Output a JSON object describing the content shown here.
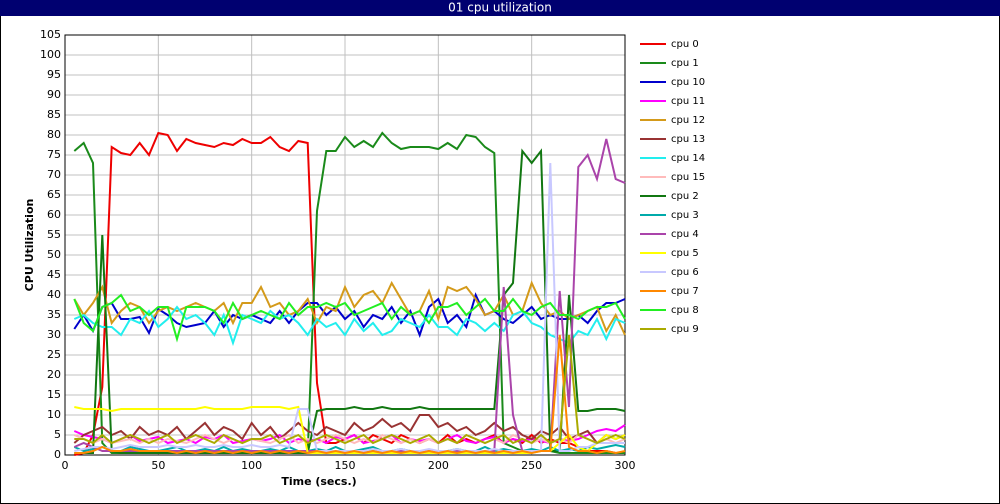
{
  "chart_data": {
    "type": "line",
    "title": "01 cpu utilization",
    "xlabel": "Time (secs.)",
    "ylabel": "CPU Utilization",
    "xlim": [
      0,
      300
    ],
    "xticks": [
      0,
      50,
      100,
      150,
      200,
      250,
      300
    ],
    "ylim": [
      0,
      105
    ],
    "yticks": [
      0,
      5,
      10,
      15,
      20,
      25,
      30,
      35,
      40,
      45,
      50,
      55,
      60,
      65,
      70,
      75,
      80,
      85,
      90,
      95,
      100,
      105
    ],
    "grid": true,
    "legend": "right",
    "x": [
      5,
      10,
      15,
      20,
      25,
      30,
      35,
      40,
      45,
      50,
      55,
      60,
      65,
      70,
      75,
      80,
      85,
      90,
      95,
      100,
      105,
      110,
      115,
      120,
      125,
      130,
      135,
      140,
      145,
      150,
      155,
      160,
      165,
      170,
      175,
      180,
      185,
      190,
      195,
      200,
      205,
      210,
      215,
      220,
      225,
      230,
      235,
      240,
      245,
      250,
      255,
      260,
      265,
      270,
      275,
      280,
      285,
      290,
      295,
      300
    ],
    "series": [
      {
        "name": "cpu 0",
        "color": "#ee0000",
        "values": [
          0,
          0.5,
          5,
          17,
          77,
          75.5,
          75,
          78,
          75,
          80.5,
          80,
          76,
          79,
          78,
          77.5,
          77,
          78,
          77.5,
          79,
          78,
          78,
          79.5,
          77,
          76,
          78.5,
          78,
          18,
          3,
          3,
          4,
          5,
          3,
          5,
          4,
          3,
          5,
          4,
          3,
          4,
          3,
          5,
          3,
          4,
          3,
          4,
          5,
          3,
          4,
          3,
          5,
          3,
          4,
          3,
          3,
          2,
          1,
          1,
          1,
          0.5,
          0.5
        ]
      },
      {
        "name": "cpu 1",
        "color": "#1a8a1a",
        "values": [
          76,
          78,
          73,
          3,
          0.5,
          0.5,
          0.5,
          0.5,
          0.5,
          0.5,
          0.5,
          0.5,
          0.5,
          0.5,
          0.5,
          0.5,
          0.5,
          0.5,
          0.5,
          0.5,
          0.5,
          0.5,
          0.5,
          0.5,
          0.5,
          0.5,
          61,
          76,
          76,
          79.5,
          77,
          78.5,
          77,
          80.5,
          78,
          76.5,
          77,
          77,
          77,
          76.5,
          78,
          76.5,
          80,
          79.5,
          77,
          75.5,
          3,
          2,
          1,
          1,
          1,
          1,
          0.5,
          0.5,
          0.5,
          0.5,
          0.5,
          0.5,
          0.5,
          0.5
        ]
      },
      {
        "name": "cpu 10",
        "color": "#0000cc",
        "values": [
          31.5,
          35,
          31,
          37,
          38,
          34,
          34,
          34.5,
          30.5,
          36.5,
          35,
          33,
          32,
          32.5,
          33,
          36,
          32,
          35,
          34,
          35,
          34,
          33,
          36,
          33,
          36,
          38,
          38,
          35,
          37,
          34,
          36,
          32,
          35,
          34,
          37,
          33,
          36,
          30,
          37,
          39,
          33,
          35,
          32,
          40,
          35,
          36,
          34,
          33,
          35,
          37,
          34,
          35,
          34,
          34,
          35,
          33,
          36,
          38,
          38,
          39
        ]
      },
      {
        "name": "cpu 11",
        "color": "#ff00ff",
        "values": [
          6,
          5,
          4.5,
          4,
          3,
          4,
          5,
          3.5,
          4,
          4.5,
          3,
          3.5,
          4,
          3,
          4.5,
          4,
          5,
          3,
          3.5,
          4,
          3.5,
          4,
          5,
          3,
          4,
          3.5,
          4,
          3,
          4.5,
          4,
          5,
          3,
          3.5,
          4,
          5,
          3,
          4,
          3.5,
          4,
          3,
          4,
          5,
          3.5,
          3,
          4,
          4.5,
          3,
          4,
          3.5,
          4,
          3.5,
          3,
          4,
          3.5,
          4,
          5,
          6,
          6.5,
          6,
          7.5
        ]
      },
      {
        "name": "cpu 12",
        "color": "#d49a1a",
        "values": [
          39,
          35,
          38,
          42,
          33,
          36,
          38,
          37,
          33,
          36,
          37,
          36,
          37,
          38,
          37,
          36,
          38,
          33,
          38,
          38,
          42,
          37,
          38,
          35,
          36,
          39,
          33,
          37,
          36,
          42,
          37,
          40,
          41,
          38,
          43,
          39,
          35,
          36,
          41,
          34,
          42,
          41,
          42,
          39,
          35,
          36,
          40,
          35,
          36,
          43,
          38,
          35,
          36,
          34,
          35,
          36,
          37,
          31,
          35,
          30
        ]
      },
      {
        "name": "cpu 13",
        "color": "#993333",
        "values": [
          3,
          5,
          6,
          7,
          5,
          6,
          4,
          7,
          5,
          6,
          5,
          7,
          4,
          6,
          8,
          5,
          7,
          6,
          4,
          8,
          5,
          7,
          4,
          6,
          8,
          6,
          5,
          7,
          6,
          5,
          8,
          6,
          7,
          9,
          7,
          8,
          6,
          10,
          10,
          7,
          8,
          6,
          7,
          5,
          6,
          8,
          6,
          7,
          5,
          4,
          6,
          5,
          7,
          4,
          5,
          6,
          3,
          5,
          4,
          5
        ]
      },
      {
        "name": "cpu 14",
        "color": "#22eeee",
        "values": [
          34,
          35,
          33,
          32,
          32,
          30,
          34,
          33,
          36,
          32,
          34,
          37,
          34,
          35,
          33,
          30,
          35,
          28,
          35,
          34,
          33,
          36,
          34,
          35,
          33,
          30,
          34,
          32,
          33,
          30,
          34,
          31,
          33,
          30,
          31,
          34,
          33,
          32,
          35,
          32,
          32,
          30,
          34,
          33,
          31,
          33,
          31,
          35,
          36,
          33,
          32,
          30,
          29,
          28,
          31,
          30,
          34,
          29,
          34,
          33
        ]
      },
      {
        "name": "cpu 15",
        "color": "#ffbbbb",
        "values": [
          5,
          4,
          3,
          4,
          3,
          3.5,
          4,
          3,
          4,
          3,
          4,
          3.5,
          3,
          4,
          5,
          4,
          3,
          4,
          3,
          4,
          3.5,
          3,
          4,
          5,
          3,
          4,
          3,
          4,
          5,
          4,
          3,
          4,
          3,
          5,
          4,
          3,
          4,
          3,
          4,
          3,
          4,
          3,
          5,
          4,
          3,
          4,
          3,
          5,
          4,
          3,
          4,
          3,
          4,
          3,
          5,
          4,
          3,
          4,
          3,
          4
        ]
      },
      {
        "name": "cpu 2",
        "color": "#117711",
        "values": [
          0.5,
          0.5,
          0.5,
          55,
          1,
          0.5,
          0.5,
          0.5,
          0.5,
          0.5,
          0.5,
          0.5,
          0.5,
          0.5,
          0.5,
          0.5,
          0.5,
          0.5,
          0.5,
          0.5,
          0.5,
          0.5,
          0.5,
          0.5,
          0.5,
          0.5,
          11,
          11.5,
          11.5,
          11.5,
          12,
          11.5,
          11.5,
          12,
          11.5,
          11.5,
          11.5,
          12,
          11.5,
          11.5,
          11.5,
          11.5,
          11.5,
          11.5,
          11.5,
          11.5,
          40,
          43,
          76,
          73,
          76,
          1,
          1,
          40,
          11,
          11,
          11.5,
          11.5,
          11.5,
          11
        ]
      },
      {
        "name": "cpu 3",
        "color": "#00aaaa",
        "values": [
          2,
          1,
          1.5,
          2,
          1,
          1,
          2,
          1.5,
          1,
          1,
          1.5,
          2,
          1,
          1,
          1.5,
          1,
          2,
          1,
          1.5,
          1,
          1,
          1.5,
          1,
          2,
          1,
          1,
          1.5,
          1,
          2,
          1,
          1,
          1.5,
          2,
          1,
          1,
          1.5,
          1,
          1,
          0.5,
          1,
          1,
          1.5,
          1,
          1,
          2,
          1,
          1.5,
          1,
          1,
          1.5,
          1,
          2,
          1,
          1.5,
          1,
          2,
          1.5,
          2,
          2.5,
          2
        ]
      },
      {
        "name": "cpu 4",
        "color": "#aa44aa",
        "values": [
          2,
          3,
          2,
          1,
          1,
          1,
          1,
          1,
          1,
          1,
          1,
          1,
          1,
          1,
          1,
          1,
          1,
          1,
          1,
          1,
          1,
          1,
          1,
          1,
          1,
          1,
          1,
          1,
          1,
          1,
          1,
          1,
          1,
          1,
          1,
          1,
          1,
          1,
          1,
          1,
          1,
          1,
          1,
          1,
          1,
          1,
          42,
          10,
          1,
          1,
          1,
          1,
          41,
          12,
          72,
          75,
          69,
          79,
          69,
          68
        ]
      },
      {
        "name": "cpu 5",
        "color": "#ffff00",
        "values": [
          12,
          11.5,
          11.5,
          11.5,
          11,
          11.5,
          11.5,
          11.5,
          11.5,
          11.5,
          11.5,
          11.5,
          11.5,
          11.5,
          12,
          11.5,
          11.5,
          11.5,
          11.5,
          12,
          12,
          12,
          12,
          11.5,
          12,
          0.5,
          0.5,
          0.5,
          0.5,
          0.5,
          0.5,
          0.5,
          0.5,
          0.5,
          0.5,
          0.5,
          0.5,
          0.5,
          0.5,
          0.5,
          0.5,
          0.5,
          0.5,
          0.5,
          0.5,
          0.5,
          0.5,
          0.5,
          0.5,
          0.5,
          1,
          1,
          3,
          5,
          2,
          1,
          3,
          5,
          4,
          5
        ]
      },
      {
        "name": "cpu 6",
        "color": "#c8c8ff",
        "values": [
          1,
          1.5,
          2,
          2,
          1.5,
          2,
          2.5,
          2,
          2,
          2,
          2.5,
          2,
          2,
          2.5,
          2,
          2,
          2.5,
          2,
          2,
          2.5,
          2,
          2,
          2.5,
          2,
          11.5,
          11.5,
          1,
          1,
          1,
          1,
          1,
          1,
          1.5,
          1,
          1,
          1.5,
          1,
          1,
          1.5,
          1,
          1,
          1.5,
          1,
          1,
          1,
          1.5,
          1,
          1,
          1,
          1,
          1,
          73,
          1,
          1,
          2,
          2,
          3,
          3,
          3,
          3
        ]
      },
      {
        "name": "cpu 7",
        "color": "#ff8800",
        "values": [
          0.5,
          0.5,
          1,
          2,
          1,
          1,
          1.5,
          1,
          1,
          1,
          1,
          0.5,
          1,
          0.5,
          1,
          0.5,
          1,
          0.5,
          1,
          0.5,
          1,
          0.5,
          1,
          0.5,
          1,
          0.5,
          1,
          0.5,
          1,
          0.5,
          1,
          0.5,
          1,
          0.5,
          1,
          0.5,
          1,
          0.5,
          1,
          0.5,
          1,
          0.5,
          1,
          0.5,
          1,
          0.5,
          1,
          0.5,
          1,
          0.5,
          1,
          1,
          30,
          2,
          1,
          1,
          0.5,
          1,
          0.5,
          1
        ]
      },
      {
        "name": "cpu 8",
        "color": "#22ee22",
        "values": [
          39,
          33,
          31,
          37,
          38,
          40,
          36,
          37,
          35,
          37,
          37,
          29,
          37,
          37,
          37,
          36,
          33,
          38,
          34,
          35,
          36,
          35,
          34,
          38,
          35,
          37,
          37,
          38,
          37,
          38,
          35,
          36,
          37,
          38,
          34,
          37,
          35,
          36,
          33,
          37,
          37,
          38,
          35,
          37,
          39,
          36,
          36,
          39,
          36,
          35,
          37,
          38,
          35,
          35,
          34,
          36,
          37,
          37,
          38,
          34
        ]
      },
      {
        "name": "cpu 9",
        "color": "#aaaa00",
        "values": [
          4,
          4,
          3,
          5,
          3,
          4,
          5,
          4,
          3,
          4,
          5,
          3,
          4,
          5,
          4,
          3,
          5,
          4,
          3,
          4,
          4,
          5,
          3,
          4,
          5,
          3,
          4,
          5,
          4,
          3,
          4,
          5,
          3,
          4,
          5,
          4,
          3,
          4,
          5,
          3,
          4,
          3,
          5,
          4,
          3,
          4,
          5,
          3,
          4,
          3,
          5,
          3,
          4,
          30,
          5,
          4,
          3,
          4,
          5,
          4
        ]
      }
    ]
  }
}
